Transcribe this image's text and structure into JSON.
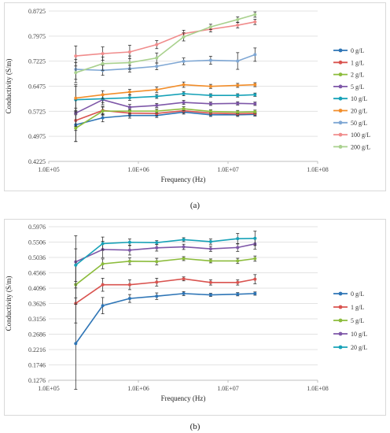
{
  "charts": [
    {
      "caption": "(a)",
      "chart_data": {
        "type": "line",
        "xscale": "log",
        "xlabel": "Frequency (Hz)",
        "ylabel": "Conductivity (S/m)",
        "xlim": [
          100000,
          100000000
        ],
        "ylim": [
          0.4225,
          0.8725
        ],
        "xticks": [
          "1.0E+05",
          "1.0E+06",
          "1.0E+07",
          "1.0E+08"
        ],
        "yticks": [
          "0.4225",
          "0.4975",
          "0.5725",
          "0.6475",
          "0.7225",
          "0.7975",
          "0.8725"
        ],
        "grid": "horizontal",
        "legend": "right",
        "x": [
          200000,
          400000,
          800000,
          1600000,
          3200000,
          6400000,
          12800000,
          20000000
        ],
        "series": [
          {
            "name": "0 g/L",
            "color": "#2e75b6",
            "values": [
              0.532,
              0.553,
              0.56,
              0.56,
              0.57,
              0.562,
              0.562,
              0.563
            ],
            "err": [
              0.05,
              0.012,
              0.008,
              0.006,
              0.006,
              0.005,
              0.005,
              0.005
            ]
          },
          {
            "name": "1 g/L",
            "color": "#d9534f",
            "values": [
              0.545,
              0.575,
              0.567,
              0.566,
              0.574,
              0.567,
              0.565,
              0.566
            ],
            "err": [
              0.03,
              0.012,
              0.008,
              0.006,
              0.006,
              0.005,
              0.005,
              0.005
            ]
          },
          {
            "name": "2 g/L",
            "color": "#8cbc3c",
            "values": [
              0.522,
              0.573,
              0.573,
              0.573,
              0.58,
              0.572,
              0.57,
              0.571
            ],
            "err": [
              0.04,
              0.012,
              0.008,
              0.006,
              0.006,
              0.005,
              0.005,
              0.005
            ]
          },
          {
            "name": "5 g/L",
            "color": "#7e57a8",
            "values": [
              0.567,
              0.607,
              0.585,
              0.59,
              0.599,
              0.595,
              0.596,
              0.595
            ],
            "err": [
              0.04,
              0.015,
              0.008,
              0.006,
              0.006,
              0.005,
              0.005,
              0.005
            ]
          },
          {
            "name": "10 g/L",
            "color": "#17a2b8",
            "values": [
              0.607,
              0.61,
              0.613,
              0.617,
              0.625,
              0.62,
              0.62,
              0.622
            ],
            "err": [
              0.04,
              0.012,
              0.008,
              0.006,
              0.006,
              0.005,
              0.005,
              0.005
            ]
          },
          {
            "name": "20 g/L",
            "color": "#f28e2b",
            "values": [
              0.612,
              0.622,
              0.63,
              0.637,
              0.652,
              0.647,
              0.65,
              0.652
            ],
            "err": [
              0.04,
              0.012,
              0.008,
              0.008,
              0.008,
              0.006,
              0.006,
              0.006
            ]
          },
          {
            "name": "50 g/L",
            "color": "#7fa7d4",
            "values": [
              0.698,
              0.695,
              0.7,
              0.707,
              0.722,
              0.725,
              0.723,
              0.742
            ],
            "err": [
              0.03,
              0.015,
              0.01,
              0.01,
              0.01,
              0.012,
              0.025,
              0.02
            ]
          },
          {
            "name": "100 g/L",
            "color": "#f08c8c",
            "values": [
              0.738,
              0.745,
              0.75,
              0.772,
              0.805,
              0.818,
              0.83,
              0.84
            ],
            "err": [
              0.03,
              0.02,
              0.02,
              0.012,
              0.01,
              0.008,
              0.008,
              0.008
            ]
          },
          {
            "name": "200 g/L",
            "color": "#a9d18e",
            "values": [
              0.688,
              0.715,
              0.718,
              0.732,
              0.795,
              0.825,
              0.847,
              0.862
            ],
            "err": [
              0.03,
              0.02,
              0.02,
              0.015,
              0.012,
              0.008,
              0.008,
              0.008
            ]
          }
        ]
      }
    },
    {
      "caption": "(b)",
      "chart_data": {
        "type": "line",
        "xscale": "log",
        "xlabel": "Frequency (Hz)",
        "ylabel": "Conductivity (S/m)",
        "xlim": [
          100000,
          100000000
        ],
        "ylim": [
          0.1276,
          0.5976
        ],
        "xticks": [
          "1.0E+05",
          "1.0E+06",
          "1.0E+07",
          "1.0E+08"
        ],
        "yticks": [
          "0.1276",
          "0.1746",
          "0.2216",
          "0.2686",
          "0.3156",
          "0.3626",
          "0.4096",
          "0.4566",
          "0.5036",
          "0.5506",
          "0.5976"
        ],
        "grid": "horizontal",
        "legend": "right",
        "x": [
          200000,
          400000,
          800000,
          1600000,
          3200000,
          6400000,
          12800000,
          20000000
        ],
        "series": [
          {
            "name": "0 g/L",
            "color": "#2e75b6",
            "values": [
              0.24,
              0.356,
              0.378,
              0.385,
              0.393,
              0.389,
              0.391,
              0.393
            ],
            "err": [
              0.14,
              0.025,
              0.012,
              0.01,
              0.006,
              0.005,
              0.005,
              0.005
            ]
          },
          {
            "name": "1 g/L",
            "color": "#d9534f",
            "values": [
              0.363,
              0.42,
              0.42,
              0.428,
              0.438,
              0.427,
              0.427,
              0.437
            ],
            "err": [
              0.06,
              0.02,
              0.015,
              0.012,
              0.006,
              0.008,
              0.008,
              0.014
            ]
          },
          {
            "name": "5 g/L",
            "color": "#8cbc3c",
            "values": [
              0.42,
              0.484,
              0.492,
              0.491,
              0.5,
              0.493,
              0.493,
              0.5
            ],
            "err": [
              0.06,
              0.015,
              0.01,
              0.01,
              0.006,
              0.006,
              0.008,
              0.008
            ]
          },
          {
            "name": "10 g/L",
            "color": "#7e57a8",
            "values": [
              0.49,
              0.528,
              0.526,
              0.533,
              0.536,
              0.53,
              0.534,
              0.545
            ],
            "err": [
              0.08,
              0.025,
              0.015,
              0.01,
              0.008,
              0.008,
              0.012,
              0.016
            ]
          },
          {
            "name": "20 g/L",
            "color": "#17a2b8",
            "values": [
              0.48,
              0.546,
              0.55,
              0.549,
              0.558,
              0.552,
              0.561,
              0.562
            ],
            "err": [
              0.05,
              0.02,
              0.01,
              0.006,
              0.006,
              0.008,
              0.016,
              0.022
            ]
          }
        ]
      }
    }
  ]
}
